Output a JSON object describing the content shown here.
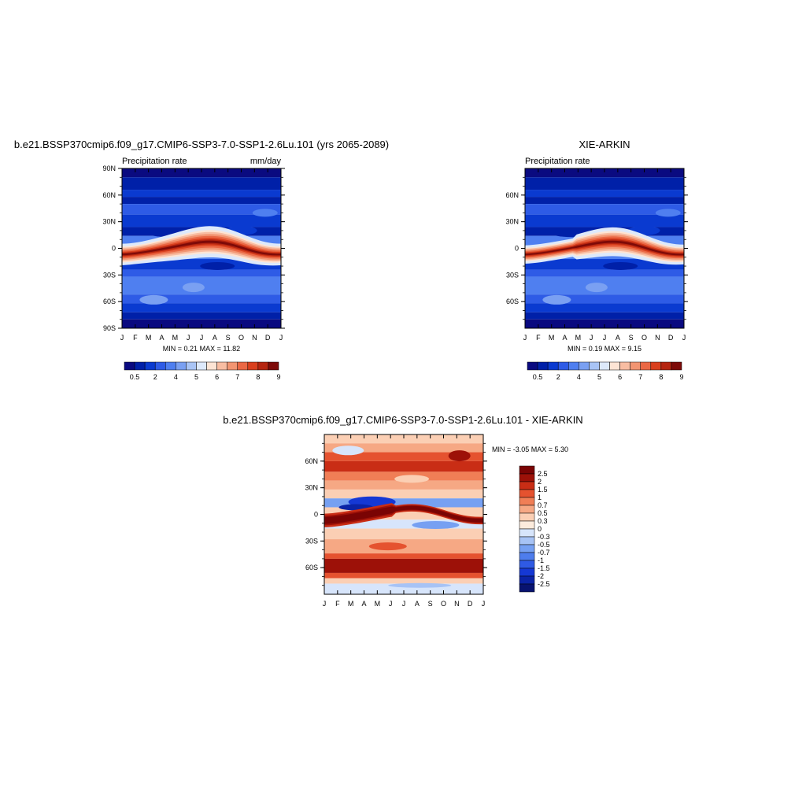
{
  "chart_data": [
    {
      "type": "heatmap",
      "title": "b.e21.BSSP370cmip6.f09_g17.CMIP6-SSP3-7.0-SSP1-2.6Lu.101 (yrs 2065-2089)",
      "left_label": "Precipitation rate",
      "right_label": "mm/day",
      "stats": "MIN =   0.21 MAX =  11.82",
      "x_ticks": [
        "J",
        "F",
        "M",
        "A",
        "M",
        "J",
        "J",
        "A",
        "S",
        "O",
        "N",
        "D",
        "J"
      ],
      "y_ticks": [
        "90N",
        "60N",
        "30N",
        "0",
        "30S",
        "60S",
        "90S"
      ],
      "ylim": [
        -90,
        90
      ],
      "colorbar_labels": [
        "0.5",
        "2",
        "4",
        "5",
        "6",
        "7",
        "8",
        "9"
      ],
      "band_amplitude": 1.0
    },
    {
      "type": "heatmap",
      "title": "XIE-ARKIN",
      "left_label": "Precipitation rate",
      "right_label": "",
      "stats": "MIN =   0.19 MAX =   9.15",
      "x_ticks": [
        "J",
        "F",
        "M",
        "A",
        "M",
        "J",
        "J",
        "A",
        "S",
        "O",
        "N",
        "D",
        "J"
      ],
      "y_ticks": [
        "60N",
        "30N",
        "0",
        "30S",
        "60S"
      ],
      "ylim": [
        -90,
        90
      ],
      "colorbar_labels": [
        "0.5",
        "2",
        "4",
        "5",
        "6",
        "7",
        "8",
        "9"
      ],
      "band_amplitude": 0.8
    },
    {
      "type": "heatmap",
      "title": "b.e21.BSSP370cmip6.f09_g17.CMIP6-SSP3-7.0-SSP1-2.6Lu.101 - XIE-ARKIN",
      "stats": "MIN =  -3.05 MAX =   5.30",
      "x_ticks": [
        "J",
        "F",
        "M",
        "A",
        "M",
        "J",
        "J",
        "A",
        "S",
        "O",
        "N",
        "D",
        "J"
      ],
      "y_ticks": [
        "60N",
        "30N",
        "0",
        "30S",
        "60S"
      ],
      "ylim": [
        -90,
        90
      ],
      "colorbar_labels": [
        "2.5",
        "2",
        "1.5",
        "1",
        "0.7",
        "0.5",
        "0.3",
        "0",
        "-0.3",
        "-0.5",
        "-0.7",
        "-1",
        "-1.5",
        "-2",
        "-2.5"
      ]
    }
  ],
  "palettes": {
    "precip": [
      "#0a0a80",
      "#0020a8",
      "#0a3ad0",
      "#2e5be6",
      "#4f7ff0",
      "#7aa0f2",
      "#a9c4f5",
      "#dde9fb",
      "#fde4d4",
      "#f8bda2",
      "#f29572",
      "#ea6845",
      "#d9401e",
      "#b52510",
      "#7d0a08"
    ],
    "diff": [
      "#081370",
      "#0b23a6",
      "#1538d4",
      "#2f5ae4",
      "#4e7ded",
      "#76a0f2",
      "#a7c3f5",
      "#d7e5fb",
      "#fdebdc",
      "#fbcfb4",
      "#f6a884",
      "#f07e56",
      "#e5522f",
      "#c92d15",
      "#9d1108",
      "#7a0404"
    ]
  }
}
